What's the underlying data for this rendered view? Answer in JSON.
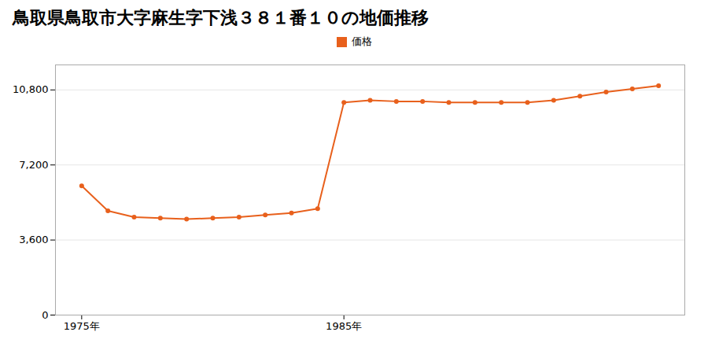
{
  "chart_data": {
    "type": "line",
    "title": "鳥取県鳥取市大字麻生字下浅３８１番１０の地価推移",
    "x": [
      1975,
      1976,
      1977,
      1978,
      1979,
      1980,
      1981,
      1982,
      1983,
      1984,
      1985,
      1986,
      1987,
      1988,
      1989,
      1990,
      1991,
      1992,
      1993,
      1994,
      1995,
      1996,
      1997
    ],
    "series": [
      {
        "name": "価格",
        "color": "#e8601c",
        "values": [
          6200,
          5000,
          4700,
          4650,
          4600,
          4650,
          4700,
          4800,
          4900,
          5100,
          10200,
          10300,
          10250,
          10250,
          10200,
          10200,
          10200,
          10200,
          10300,
          10500,
          10700,
          10850,
          11000
        ]
      }
    ],
    "xlim": [
      1974,
      1998
    ],
    "xticks": [
      {
        "value": 1975,
        "label": "1975年"
      },
      {
        "value": 1985,
        "label": "1985年"
      }
    ],
    "ylim": [
      0,
      12000
    ],
    "yticks": [
      0,
      {
        "value": 3600,
        "label": "3,600"
      },
      {
        "value": 7200,
        "label": "7,200"
      },
      {
        "value": 10800,
        "label": "10,800"
      }
    ],
    "grid": "y",
    "legend": "top",
    "marker": "circle"
  }
}
